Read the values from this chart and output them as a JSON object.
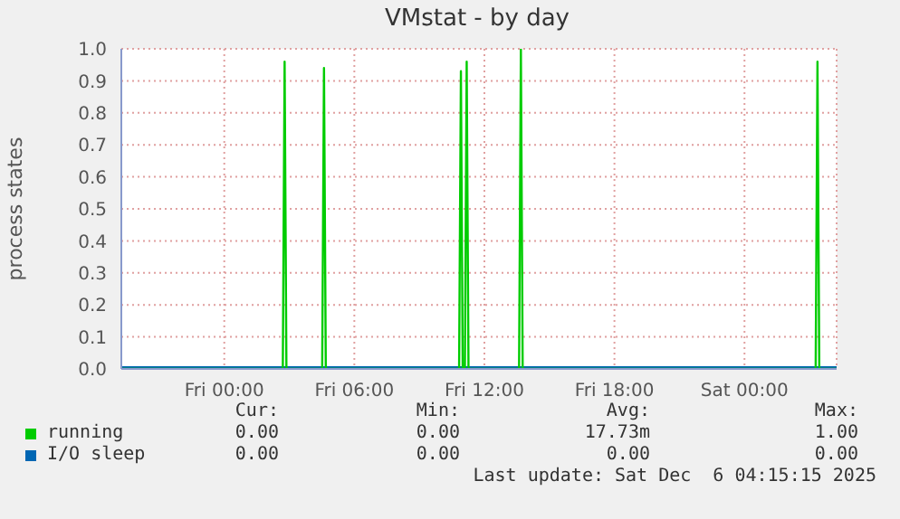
{
  "chart_data": {
    "type": "line",
    "title": "VMstat - by day",
    "ylabel": "process states",
    "xlim": [
      "2025-12-04T19:15",
      "2025-12-06T04:15"
    ],
    "xticks": [
      {
        "value": "2025-12-05T00:00",
        "label": "Fri 00:00"
      },
      {
        "value": "2025-12-05T06:00",
        "label": "Fri 06:00"
      },
      {
        "value": "2025-12-05T12:00",
        "label": "Fri 12:00"
      },
      {
        "value": "2025-12-05T18:00",
        "label": "Fri 18:00"
      },
      {
        "value": "2025-12-06T00:00",
        "label": "Sat 00:00"
      }
    ],
    "ylim": [
      0,
      1
    ],
    "yticks": [
      {
        "value": 0,
        "label": "0.0"
      },
      0.1,
      0.2,
      0.3,
      0.4,
      0.5,
      0.6,
      0.7,
      0.8,
      0.9,
      {
        "value": 1,
        "label": "1.0"
      }
    ],
    "grid": true,
    "legend": "bottom",
    "marker": "none",
    "line_style": "solid",
    "series": [
      {
        "name": "running",
        "color": "#00cc00",
        "x": [
          "2025-12-04T19:15",
          "2025-12-05T02:42",
          "2025-12-05T02:47",
          "2025-12-05T02:52",
          "2025-12-05T04:31",
          "2025-12-05T04:36",
          "2025-12-05T04:41",
          "2025-12-05T10:50",
          "2025-12-05T10:55",
          "2025-12-05T11:00",
          "2025-12-05T11:06",
          "2025-12-05T11:11",
          "2025-12-05T11:16",
          "2025-12-05T13:36",
          "2025-12-05T13:41",
          "2025-12-05T13:46",
          "2025-12-06T03:17",
          "2025-12-06T03:22",
          "2025-12-06T03:27",
          "2025-12-06T04:15"
        ],
        "values": [
          0,
          0,
          0.96,
          0,
          0,
          0.94,
          0,
          0,
          0.93,
          0,
          0,
          0.96,
          0,
          0,
          1.0,
          0,
          0,
          0.96,
          0,
          0
        ]
      },
      {
        "name": "I/O sleep",
        "color": "#0066b3",
        "x": [
          "2025-12-04T19:15",
          "2025-12-06T04:15"
        ],
        "values": [
          0,
          0
        ]
      }
    ],
    "annotations": [
      "Cur:",
      "Min:",
      "Avg:",
      "Max:",
      "0.00",
      "0.00",
      "17.73m",
      "1.00",
      "0.00",
      "0.00",
      "0.00",
      "0.00",
      "Last update: Sat Dec  6 04:15:15 2025"
    ]
  }
}
